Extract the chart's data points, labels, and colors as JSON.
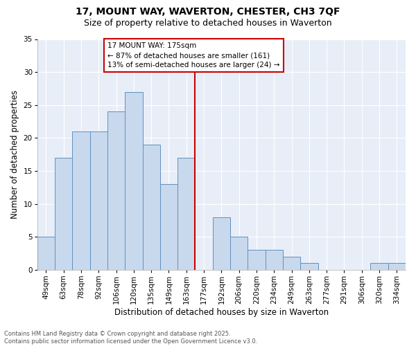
{
  "title1": "17, MOUNT WAY, WAVERTON, CHESTER, CH3 7QF",
  "title2": "Size of property relative to detached houses in Waverton",
  "xlabel": "Distribution of detached houses by size in Waverton",
  "ylabel": "Number of detached properties",
  "bar_labels": [
    "49sqm",
    "63sqm",
    "78sqm",
    "92sqm",
    "106sqm",
    "120sqm",
    "135sqm",
    "149sqm",
    "163sqm",
    "177sqm",
    "192sqm",
    "206sqm",
    "220sqm",
    "234sqm",
    "249sqm",
    "263sqm",
    "277sqm",
    "291sqm",
    "306sqm",
    "320sqm",
    "334sqm"
  ],
  "bar_values": [
    5,
    17,
    21,
    21,
    24,
    27,
    19,
    13,
    17,
    0,
    8,
    5,
    3,
    3,
    2,
    1,
    0,
    0,
    0,
    1,
    1
  ],
  "bar_color": "#c8d9ed",
  "bar_edge_color": "#6090c0",
  "vline_color": "#cc0000",
  "annotation_title": "17 MOUNT WAY: 175sqm",
  "annotation_line1": "← 87% of detached houses are smaller (161)",
  "annotation_line2": "13% of semi-detached houses are larger (24) →",
  "annotation_box_color": "#cc0000",
  "ylim": [
    0,
    35
  ],
  "yticks": [
    0,
    5,
    10,
    15,
    20,
    25,
    30,
    35
  ],
  "background_color": "#e8eef8",
  "grid_color": "#ffffff",
  "footer": "Contains HM Land Registry data © Crown copyright and database right 2025.\nContains public sector information licensed under the Open Government Licence v3.0.",
  "title1_fontsize": 10,
  "title2_fontsize": 9,
  "axis_label_fontsize": 8.5,
  "tick_fontsize": 7.5,
  "annotation_fontsize": 7.5,
  "footer_fontsize": 6
}
